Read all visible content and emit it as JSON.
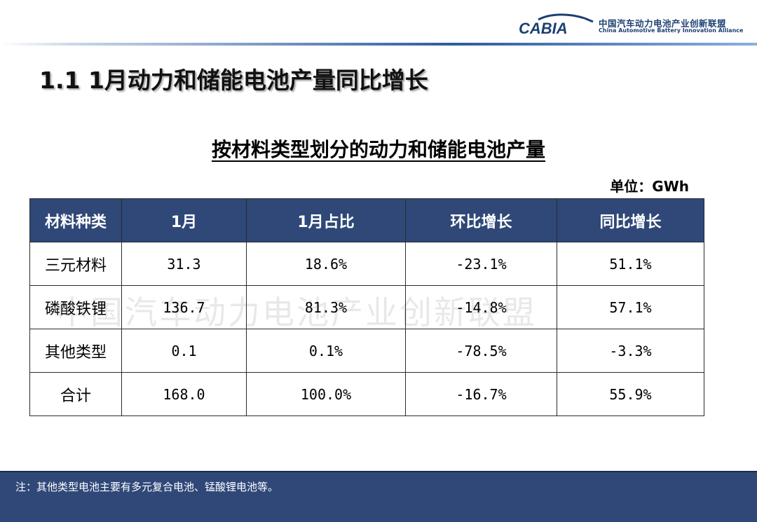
{
  "logo": {
    "wordmark": "CABIA",
    "cn_name": "中国汽车动力电池产业创新联盟",
    "en_name": "China Automotive Battery Innovation Alliance"
  },
  "slide_title": "1.1 1月动力和储能电池产量同比增长",
  "table_title": "按材料类型划分的动力和储能电池产量",
  "unit": "单位：GWh",
  "watermark": "中国汽车动力电池产业创新联盟",
  "table": {
    "headers": [
      "材料种类",
      "1月",
      "1月占比",
      "环比增长",
      "同比增长"
    ],
    "rows": [
      [
        "三元材料",
        "31.3",
        "18.6%",
        "-23.1%",
        "51.1%"
      ],
      [
        "磷酸铁锂",
        "136.7",
        "81.3%",
        "-14.8%",
        "57.1%"
      ],
      [
        "其他类型",
        "0.1",
        "0.1%",
        "-78.5%",
        "-3.3%"
      ],
      [
        "合计",
        "168.0",
        "100.0%",
        "-16.7%",
        "55.9%"
      ]
    ]
  },
  "note": "注：其他类型电池主要有多元复合电池、锰酸锂电池等。",
  "colors": {
    "header_bg": "#2f4878",
    "accent_line": "#2e5c9e"
  }
}
